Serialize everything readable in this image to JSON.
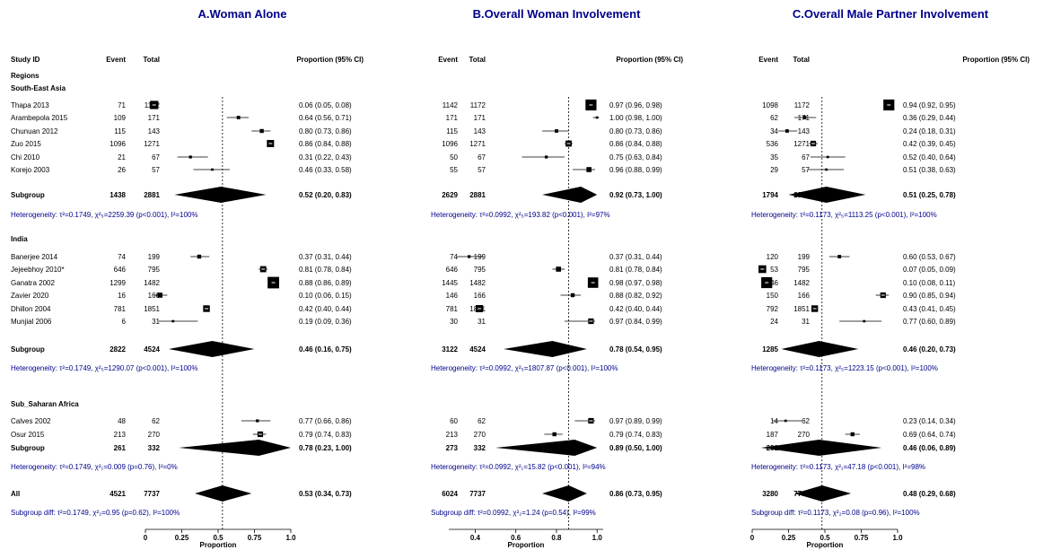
{
  "chart_data": {
    "type": "forest",
    "header": {
      "study_id": "Study ID",
      "event": "Event",
      "total": "Total",
      "proportion": "Proportion (95% CI)"
    },
    "regions_label": "Regions",
    "xlabel": "Proportion",
    "studies": [
      {
        "region": "South-East Asia",
        "name": "Thapa 2013"
      },
      {
        "region": "South-East Asia",
        "name": "Arambepola 2015"
      },
      {
        "region": "South-East Asia",
        "name": "Chunuan 2012"
      },
      {
        "region": "South-East Asia",
        "name": "Zuo 2015"
      },
      {
        "region": "South-East Asia",
        "name": "Chi 2010"
      },
      {
        "region": "South-East Asia",
        "name": "Korejo 2003"
      },
      {
        "region": "India",
        "name": "Banerjee 2014"
      },
      {
        "region": "India",
        "name": "Jejeebhoy 2010*"
      },
      {
        "region": "India",
        "name": "Ganatra 2002"
      },
      {
        "region": "India",
        "name": "Zavier 2020"
      },
      {
        "region": "India",
        "name": "Dhillon 2004"
      },
      {
        "region": "India",
        "name": "Munjial 2006"
      },
      {
        "region": "Sub_Saharan Africa",
        "name": "Calves 2002"
      },
      {
        "region": "Sub_Saharan Africa",
        "name": "Osur 2015"
      }
    ],
    "regions": [
      "South-East Asia",
      "India",
      "Sub_Saharan Africa"
    ],
    "subgroup_label": "Subgroup",
    "all_label": "All",
    "panels": [
      {
        "title": "A.Woman Alone",
        "xlim": [
          0,
          1
        ],
        "ticks": [
          0,
          0.25,
          0.5,
          0.75,
          1.0
        ],
        "tick_labels": [
          "0",
          "0.25",
          "0.5",
          "0.75",
          "1.0"
        ],
        "show_study_names": true,
        "rows": [
          {
            "event": "71",
            "total": "1172",
            "est": 0.06,
            "lo": 0.05,
            "hi": 0.08,
            "ci": "0.06 (0.05, 0.08)",
            "weight": 0.6
          },
          {
            "event": "109",
            "total": "171",
            "est": 0.64,
            "lo": 0.56,
            "hi": 0.71,
            "ci": "0.64 (0.56, 0.71)",
            "weight": 0.15
          },
          {
            "event": "115",
            "total": "143",
            "est": 0.8,
            "lo": 0.73,
            "hi": 0.86,
            "ci": "0.80 (0.73, 0.86)",
            "weight": 0.2
          },
          {
            "event": "1096",
            "total": "1271",
            "est": 0.86,
            "lo": 0.84,
            "hi": 0.88,
            "ci": "0.86 (0.84, 0.88)",
            "weight": 0.5
          },
          {
            "event": "21",
            "total": "67",
            "est": 0.31,
            "lo": 0.22,
            "hi": 0.43,
            "ci": "0.31 (0.22, 0.43)",
            "weight": 0.1
          },
          {
            "event": "26",
            "total": "57",
            "est": 0.46,
            "lo": 0.33,
            "hi": 0.58,
            "ci": "0.46 (0.33, 0.58)",
            "weight": 0.05
          },
          {
            "event": "74",
            "total": "199",
            "est": 0.37,
            "lo": 0.31,
            "hi": 0.44,
            "ci": "0.37 (0.31, 0.44)",
            "weight": 0.2
          },
          {
            "event": "646",
            "total": "795",
            "est": 0.81,
            "lo": 0.78,
            "hi": 0.84,
            "ci": "0.81 (0.78, 0.84)",
            "weight": 0.4
          },
          {
            "event": "1299",
            "total": "1482",
            "est": 0.88,
            "lo": 0.86,
            "hi": 0.89,
            "ci": "0.88 (0.86, 0.89)",
            "weight": 0.9
          },
          {
            "event": "16",
            "total": "166",
            "est": 0.1,
            "lo": 0.06,
            "hi": 0.15,
            "ci": "0.10 (0.06, 0.15)",
            "weight": 0.3
          },
          {
            "event": "781",
            "total": "1851",
            "est": 0.42,
            "lo": 0.4,
            "hi": 0.44,
            "ci": "0.42 (0.40, 0.44)",
            "weight": 0.45
          },
          {
            "event": "6",
            "total": "31",
            "est": 0.19,
            "lo": 0.09,
            "hi": 0.36,
            "ci": "0.19 (0.09, 0.36)",
            "weight": 0.05
          },
          {
            "event": "48",
            "total": "62",
            "est": 0.77,
            "lo": 0.66,
            "hi": 0.86,
            "ci": "0.77 (0.66, 0.86)",
            "weight": 0.1
          },
          {
            "event": "213",
            "total": "270",
            "est": 0.79,
            "lo": 0.74,
            "hi": 0.83,
            "ci": "0.79 (0.74, 0.83)",
            "weight": 0.35
          }
        ],
        "subgroups": [
          {
            "event": "1438",
            "total": "2881",
            "est": 0.52,
            "lo": 0.2,
            "hi": 0.83,
            "ci": "0.52 (0.20, 0.83)",
            "het": "Heterogeneity: τ²=0.1749, χ²₅=2259.39 (p<0.001), I²=100%"
          },
          {
            "event": "2822",
            "total": "4524",
            "est": 0.46,
            "lo": 0.16,
            "hi": 0.75,
            "ci": "0.46 (0.16, 0.75)",
            "het": "Heterogeneity: τ²=0.1749, χ²₅=1290.07 (p<0.001), I²=100%"
          },
          {
            "event": "261",
            "total": "332",
            "est": 0.78,
            "lo": 0.23,
            "hi": 1.0,
            "ci": "0.78 (0.23, 1.00)",
            "het": "Heterogeneity: τ²=0.1749, χ²₁=0.009 (p=0.76), I²=0%"
          }
        ],
        "overall": {
          "event": "4521",
          "total": "7737",
          "est": 0.53,
          "lo": 0.34,
          "hi": 0.73,
          "ci": "0.53 (0.34, 0.73)",
          "het": "Subgroup diff: τ²=0.1749, χ²₂=0.95 (p=0.62), I²=100%"
        }
      },
      {
        "title": "B.Overall Woman Involvement",
        "xlim": [
          0.27,
          1.03
        ],
        "ticks": [
          0.4,
          0.6,
          0.8,
          1.0
        ],
        "tick_labels": [
          "0.4",
          "0.6",
          "0.8",
          "1.0"
        ],
        "show_study_names": false,
        "rows": [
          {
            "event": "1142",
            "total": "1172",
            "est": 0.97,
            "lo": 0.96,
            "hi": 0.98,
            "ci": "0.97 (0.96, 0.98)",
            "weight": 0.85
          },
          {
            "event": "171",
            "total": "171",
            "est": 1.0,
            "lo": 0.98,
            "hi": 1.0,
            "ci": "1.00 (0.98, 1.00)",
            "weight": 0.05
          },
          {
            "event": "115",
            "total": "143",
            "est": 0.8,
            "lo": 0.73,
            "hi": 0.86,
            "ci": "0.80 (0.73, 0.86)",
            "weight": 0.15
          },
          {
            "event": "1096",
            "total": "1271",
            "est": 0.86,
            "lo": 0.84,
            "hi": 0.88,
            "ci": "0.86 (0.84, 0.88)",
            "weight": 0.4
          },
          {
            "event": "50",
            "total": "67",
            "est": 0.75,
            "lo": 0.63,
            "hi": 0.84,
            "ci": "0.75 (0.63, 0.84)",
            "weight": 0.1
          },
          {
            "event": "55",
            "total": "57",
            "est": 0.96,
            "lo": 0.88,
            "hi": 0.99,
            "ci": "0.96 (0.88, 0.99)",
            "weight": 0.3
          },
          {
            "event": "74",
            "total": "199",
            "est": 0.37,
            "lo": 0.31,
            "hi": 0.44,
            "ci": "0.37 (0.31, 0.44)",
            "weight": 0.1
          },
          {
            "event": "646",
            "total": "795",
            "est": 0.81,
            "lo": 0.78,
            "hi": 0.84,
            "ci": "0.81 (0.78, 0.84)",
            "weight": 0.3
          },
          {
            "event": "1445",
            "total": "1482",
            "est": 0.98,
            "lo": 0.97,
            "hi": 0.98,
            "ci": "0.98 (0.97, 0.98)",
            "weight": 0.8
          },
          {
            "event": "146",
            "total": "166",
            "est": 0.88,
            "lo": 0.82,
            "hi": 0.92,
            "ci": "0.88 (0.82, 0.92)",
            "weight": 0.2
          },
          {
            "event": "781",
            "total": "1851",
            "est": 0.42,
            "lo": 0.4,
            "hi": 0.44,
            "ci": "0.42 (0.40, 0.44)",
            "weight": 0.5
          },
          {
            "event": "30",
            "total": "31",
            "est": 0.97,
            "lo": 0.84,
            "hi": 0.99,
            "ci": "0.97 (0.84, 0.99)",
            "weight": 0.35
          },
          {
            "event": "60",
            "total": "62",
            "est": 0.97,
            "lo": 0.89,
            "hi": 0.99,
            "ci": "0.97 (0.89, 0.99)",
            "weight": 0.35
          },
          {
            "event": "213",
            "total": "270",
            "est": 0.79,
            "lo": 0.74,
            "hi": 0.83,
            "ci": "0.79 (0.74, 0.83)",
            "weight": 0.2
          }
        ],
        "subgroups": [
          {
            "event": "2629",
            "total": "2881",
            "est": 0.92,
            "lo": 0.73,
            "hi": 1.0,
            "ci": "0.92 (0.73, 1.00)",
            "het": "Heterogeneity: τ²=0.0992, χ²₅=193.82 (p<0.001), I²=97%"
          },
          {
            "event": "3122",
            "total": "4524",
            "est": 0.78,
            "lo": 0.54,
            "hi": 0.95,
            "ci": "0.78 (0.54, 0.95)",
            "het": "Heterogeneity: τ²=0.0992, χ²₅=1807.87 (p<0.001), I²=100%"
          },
          {
            "event": "273",
            "total": "332",
            "est": 0.89,
            "lo": 0.5,
            "hi": 1.0,
            "ci": "0.89 (0.50, 1.00)",
            "het": "Heterogeneity: τ²=0.0992, χ²₁=15.82 (p<0.001), I²=94%"
          }
        ],
        "overall": {
          "event": "6024",
          "total": "7737",
          "est": 0.86,
          "lo": 0.73,
          "hi": 0.95,
          "ci": "0.86 (0.73, 0.95)",
          "het": "Subgroup diff: τ²=0.0992, χ²₂=1.24 (p=0.54), I²=99%"
        }
      },
      {
        "title": "C.Overall Male Partner Involvement",
        "xlim": [
          0,
          1
        ],
        "ticks": [
          0,
          0.25,
          0.5,
          0.75,
          1.0
        ],
        "tick_labels": [
          "0",
          "0.25",
          "0.5",
          "0.75",
          "1.0"
        ],
        "show_study_names": false,
        "rows": [
          {
            "event": "1098",
            "total": "1172",
            "est": 0.94,
            "lo": 0.92,
            "hi": 0.95,
            "ci": "0.94 (0.92, 0.95)",
            "weight": 0.85
          },
          {
            "event": "62",
            "total": "171",
            "est": 0.36,
            "lo": 0.29,
            "hi": 0.44,
            "ci": "0.36 (0.29, 0.44)",
            "weight": 0.15
          },
          {
            "event": "34",
            "total": "143",
            "est": 0.24,
            "lo": 0.18,
            "hi": 0.31,
            "ci": "0.24 (0.18, 0.31)",
            "weight": 0.15
          },
          {
            "event": "536",
            "total": "1271",
            "est": 0.42,
            "lo": 0.39,
            "hi": 0.45,
            "ci": "0.42 (0.39, 0.45)",
            "weight": 0.35
          },
          {
            "event": "35",
            "total": "67",
            "est": 0.52,
            "lo": 0.4,
            "hi": 0.64,
            "ci": "0.52 (0.40, 0.64)",
            "weight": 0.05
          },
          {
            "event": "29",
            "total": "57",
            "est": 0.51,
            "lo": 0.38,
            "hi": 0.63,
            "ci": "0.51 (0.38, 0.63)",
            "weight": 0.05
          },
          {
            "event": "120",
            "total": "199",
            "est": 0.6,
            "lo": 0.53,
            "hi": 0.67,
            "ci": "0.60 (0.53, 0.67)",
            "weight": 0.15
          },
          {
            "event": "53",
            "total": "795",
            "est": 0.07,
            "lo": 0.05,
            "hi": 0.09,
            "ci": "0.07 (0.05, 0.09)",
            "weight": 0.55
          },
          {
            "event": "146",
            "total": "1482",
            "est": 0.1,
            "lo": 0.08,
            "hi": 0.11,
            "ci": "0.10 (0.08, 0.11)",
            "weight": 0.85
          },
          {
            "event": "150",
            "total": "166",
            "est": 0.9,
            "lo": 0.85,
            "hi": 0.94,
            "ci": "0.90 (0.85, 0.94)",
            "weight": 0.35
          },
          {
            "event": "792",
            "total": "1851",
            "est": 0.43,
            "lo": 0.41,
            "hi": 0.45,
            "ci": "0.43 (0.41, 0.45)",
            "weight": 0.45
          },
          {
            "event": "24",
            "total": "31",
            "est": 0.77,
            "lo": 0.6,
            "hi": 0.89,
            "ci": "0.77 (0.60, 0.89)",
            "weight": 0.05
          },
          {
            "event": "14",
            "total": "62",
            "est": 0.23,
            "lo": 0.14,
            "hi": 0.34,
            "ci": "0.23 (0.14, 0.34)",
            "weight": 0.05
          },
          {
            "event": "187",
            "total": "270",
            "est": 0.69,
            "lo": 0.64,
            "hi": 0.74,
            "ci": "0.69 (0.64, 0.74)",
            "weight": 0.2
          }
        ],
        "subgroups": [
          {
            "event": "1794",
            "total": "2881",
            "est": 0.51,
            "lo": 0.25,
            "hi": 0.78,
            "ci": "0.51 (0.25, 0.78)",
            "het": "Heterogeneity: τ²=0.1173, χ²₅=1113.25 (p<0.001), I²=100%"
          },
          {
            "event": "1285",
            "total": "4524",
            "est": 0.46,
            "lo": 0.2,
            "hi": 0.73,
            "ci": "0.46 (0.20, 0.73)",
            "het": "Heterogeneity: τ²=0.1173, χ²₅=1223.15 (p<0.001), I²=100%"
          },
          {
            "event": "201",
            "total": "332",
            "est": 0.46,
            "lo": 0.06,
            "hi": 0.89,
            "ci": "0.46 (0.06, 0.89)",
            "het": "Heterogeneity: τ²=0.1173, χ²₁=47.18 (p<0.001), I²=98%"
          }
        ],
        "overall": {
          "event": "3280",
          "total": "7737",
          "est": 0.48,
          "lo": 0.29,
          "hi": 0.68,
          "ci": "0.48 (0.29, 0.68)",
          "het": "Subgroup diff: τ²=0.1173, χ²₂=0.08 (p=0.96), I²=100%"
        }
      }
    ]
  }
}
